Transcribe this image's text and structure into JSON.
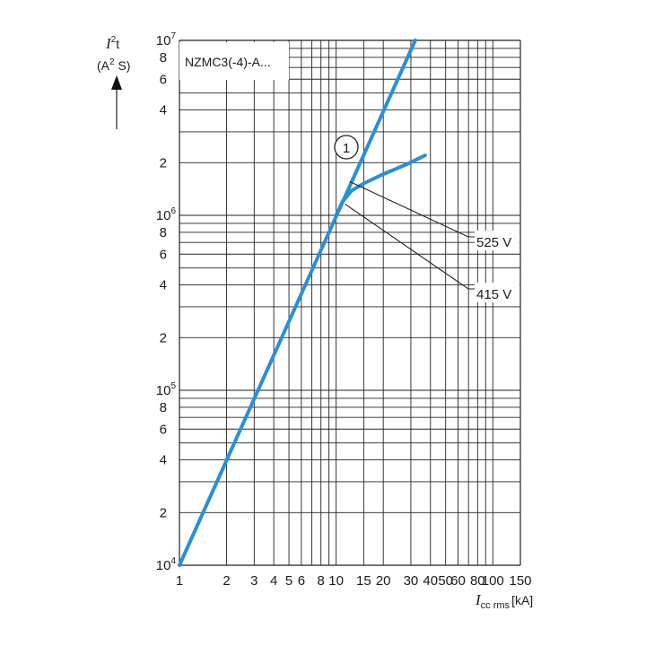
{
  "chart_data": {
    "type": "line",
    "xscale": "log",
    "yscale": "log",
    "xlim": [
      1,
      150
    ],
    "ylim": [
      10000,
      10000000
    ],
    "grid": true,
    "annotation": "NZMC3(-4)-A...",
    "ylabel": {
      "symbol": "I",
      "sup": "2",
      "suffix": "t",
      "unit_pre": "(A",
      "unit_sup": "2",
      "unit_post": " S)"
    },
    "xlabel": {
      "symbol": "I",
      "sub": "cc rms",
      "unit": "[kA]"
    },
    "x_ticks": [
      {
        "v": 1,
        "label": "1"
      },
      {
        "v": 2,
        "label": "2"
      },
      {
        "v": 3,
        "label": "3"
      },
      {
        "v": 4,
        "label": "4"
      },
      {
        "v": 5,
        "label": "5"
      },
      {
        "v": 6,
        "label": "6"
      },
      {
        "v": 8,
        "label": "8"
      },
      {
        "v": 10,
        "label": "10"
      },
      {
        "v": 15,
        "label": "15"
      },
      {
        "v": 20,
        "label": "20"
      },
      {
        "v": 30,
        "label": "30"
      },
      {
        "v": 40,
        "label": "40"
      },
      {
        "v": 50,
        "label": "50"
      },
      {
        "v": 60,
        "label": "60"
      },
      {
        "v": 80,
        "label": "80"
      },
      {
        "v": 100,
        "label": "100"
      },
      {
        "v": 150,
        "label": "150"
      }
    ],
    "y_ticks": [
      {
        "v": 10000,
        "base": "10",
        "exp": "4"
      },
      {
        "v": 20000,
        "label": "2"
      },
      {
        "v": 40000,
        "label": "4"
      },
      {
        "v": 60000,
        "label": "6"
      },
      {
        "v": 80000,
        "label": "8"
      },
      {
        "v": 100000,
        "base": "10",
        "exp": "5"
      },
      {
        "v": 200000,
        "label": "2"
      },
      {
        "v": 400000,
        "label": "4"
      },
      {
        "v": 600000,
        "label": "6"
      },
      {
        "v": 800000,
        "label": "8"
      },
      {
        "v": 1000000,
        "base": "10",
        "exp": "6"
      },
      {
        "v": 2000000,
        "label": "2"
      },
      {
        "v": 4000000,
        "label": "4"
      },
      {
        "v": 6000000,
        "label": "6"
      },
      {
        "v": 8000000,
        "label": "8"
      },
      {
        "v": 10000000,
        "base": "10",
        "exp": "7"
      }
    ],
    "series": [
      {
        "id": "prospective",
        "color": "#2a8fd6",
        "x": [
          1,
          32
        ],
        "y": [
          10000,
          10000000
        ]
      },
      {
        "name": "415 V",
        "color": "#2a8fd6",
        "x": [
          10,
          11,
          12.5,
          15,
          20,
          28,
          37
        ],
        "y": [
          1000000,
          1200000,
          1380000,
          1520000,
          1720000,
          1950000,
          2200000
        ]
      },
      {
        "name": "525 V",
        "color": "#2a8fd6",
        "x": [
          10,
          11,
          12.5
        ],
        "y": [
          1000000,
          1200000,
          1380000
        ]
      }
    ],
    "labels": {
      "curve_marker": "1",
      "series_525": "525 V",
      "series_415": "415 V"
    }
  }
}
